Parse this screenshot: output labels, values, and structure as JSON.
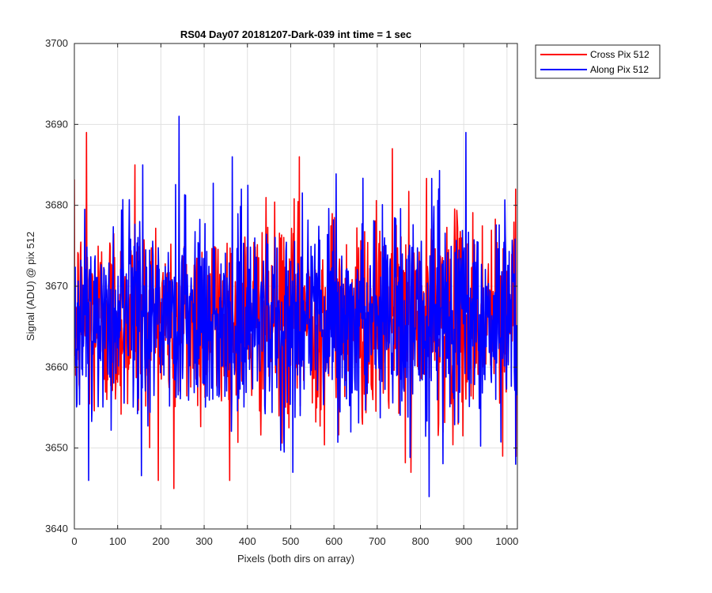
{
  "chart_data": {
    "type": "line",
    "title": "RS04 Day07 20181207-Dark-039 int time = 1 sec",
    "xlabel": "Pixels (both dirs on array)",
    "ylabel": "Signal (ADU) @ pix 512",
    "xlim": [
      0,
      1024
    ],
    "ylim": [
      3640,
      3700
    ],
    "xticks": [
      0,
      100,
      200,
      300,
      400,
      500,
      600,
      700,
      800,
      900,
      1000
    ],
    "yticks": [
      3640,
      3650,
      3660,
      3670,
      3680,
      3690,
      3700
    ],
    "grid": true,
    "legend_position": "outside-top-right",
    "series": [
      {
        "name": "Cross Pix 512",
        "color": "#ff0000",
        "approximate_mean": 3666,
        "approximate_range": [
          3645,
          3689
        ],
        "notable_points": [
          [
            28,
            3689
          ],
          [
            230,
            3645
          ],
          [
            140,
            3685
          ],
          [
            520,
            3686
          ],
          [
            735,
            3687
          ],
          [
            778,
            3647
          ],
          [
            990,
            3649
          ],
          [
            1020,
            3682
          ]
        ]
      },
      {
        "name": "Along Pix 512",
        "color": "#0000ff",
        "approximate_mean": 3666,
        "approximate_range": [
          3644,
          3691
        ],
        "notable_points": [
          [
            242,
            3691
          ],
          [
            33,
            3646
          ],
          [
            905,
            3689
          ],
          [
            820,
            3644
          ],
          [
            365,
            3686
          ],
          [
            158,
            3685
          ],
          [
            505,
            3647
          ],
          [
            1020,
            3648
          ]
        ]
      }
    ],
    "n_points": 1024
  }
}
